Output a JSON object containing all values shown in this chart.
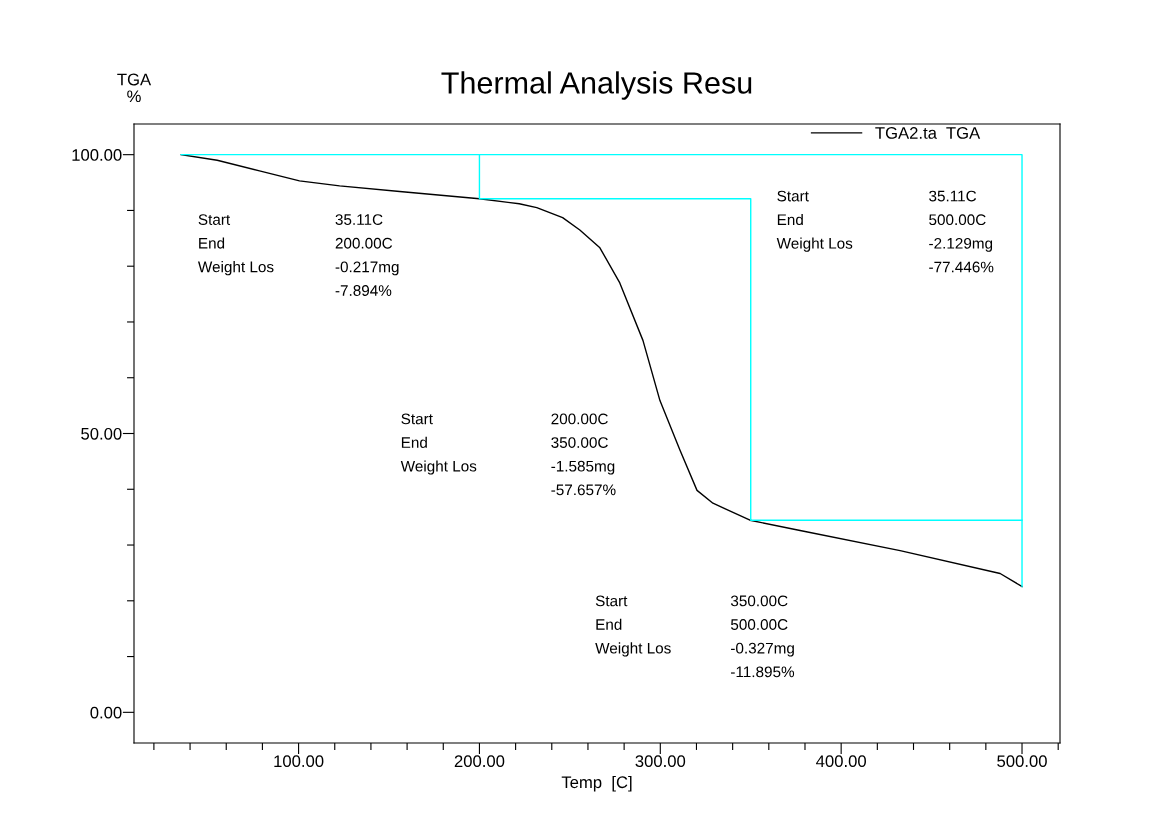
{
  "chart_data": {
    "type": "line",
    "title": "Thermal Analysis Resu",
    "xlabel": "Temp  [C]",
    "ylabel": "TGA\n%",
    "xlim": [
      9,
      521
    ],
    "ylim": [
      -5.5,
      105.5
    ],
    "xticks": [
      {
        "value": 20,
        "label": null
      },
      {
        "value": 40,
        "label": null
      },
      {
        "value": 60,
        "label": null
      },
      {
        "value": 80,
        "label": null
      },
      {
        "value": 100,
        "label": "100.00"
      },
      {
        "value": 120,
        "label": null
      },
      {
        "value": 140,
        "label": null
      },
      {
        "value": 160,
        "label": null
      },
      {
        "value": 180,
        "label": null
      },
      {
        "value": 200,
        "label": "200.00"
      },
      {
        "value": 220,
        "label": null
      },
      {
        "value": 240,
        "label": null
      },
      {
        "value": 260,
        "label": null
      },
      {
        "value": 280,
        "label": null
      },
      {
        "value": 300,
        "label": "300.00"
      },
      {
        "value": 320,
        "label": null
      },
      {
        "value": 340,
        "label": null
      },
      {
        "value": 360,
        "label": null
      },
      {
        "value": 380,
        "label": null
      },
      {
        "value": 400,
        "label": "400.00"
      },
      {
        "value": 420,
        "label": null
      },
      {
        "value": 440,
        "label": null
      },
      {
        "value": 460,
        "label": null
      },
      {
        "value": 480,
        "label": null
      },
      {
        "value": 500,
        "label": "500.00"
      },
      {
        "value": 520,
        "label": null
      }
    ],
    "yticks": [
      {
        "value": 0,
        "label": "0.00"
      },
      {
        "value": 10,
        "label": null
      },
      {
        "value": 20,
        "label": null
      },
      {
        "value": 30,
        "label": null
      },
      {
        "value": 40,
        "label": null
      },
      {
        "value": 50,
        "label": "50.00"
      },
      {
        "value": 60,
        "label": null
      },
      {
        "value": 70,
        "label": null
      },
      {
        "value": 80,
        "label": null
      },
      {
        "value": 90,
        "label": null
      },
      {
        "value": 100,
        "label": "100.00"
      }
    ],
    "grid": false,
    "legend": "top right",
    "marker": "none",
    "line_style": "solid",
    "series": [
      {
        "name": "TGA2.ta  TGA",
        "color": "#000000",
        "x": [
          35.11,
          55,
          78.4,
          100.5,
          122.7,
          155.9,
          200,
          222,
          231.7,
          246,
          255.5,
          266.6,
          277.6,
          290.4,
          299.8,
          310.9,
          320.3,
          329.1,
          349.6,
          377.3,
          432.6,
          487.9,
          500
        ],
        "values": [
          100,
          99.0,
          97.1,
          95.3,
          94.4,
          93.4,
          92.1,
          91.2,
          90.5,
          88.7,
          86.5,
          83.3,
          77.0,
          66.7,
          55.9,
          47.0,
          39.8,
          37.5,
          34.45,
          32.6,
          29.0,
          24.9,
          22.55
        ]
      },
      {
        "color": "#00ffff",
        "x": [
          35.11,
          500,
          500
        ],
        "values": [
          100,
          100,
          22.55
        ]
      },
      {
        "color": "#00ffff",
        "x": [
          200,
          200,
          350,
          350,
          500
        ],
        "values": [
          100,
          92.1,
          92.1,
          34.45,
          34.45
        ]
      }
    ],
    "annotations": [
      "Start\nEnd\nWeight Los",
      "35.11C\n200.00C\n-0.217mg\n-7.894%",
      "Start\nEnd\nWeight Los",
      "200.00C\n350.00C\n-1.585mg\n-57.657%",
      "Start\nEnd\nWeight Los",
      "350.00C\n500.00C\n-0.327mg\n-11.895%",
      "Start\nEnd\nWeight Los",
      "35.11C\n500.00C\n-2.129mg\n-77.446%"
    ]
  }
}
